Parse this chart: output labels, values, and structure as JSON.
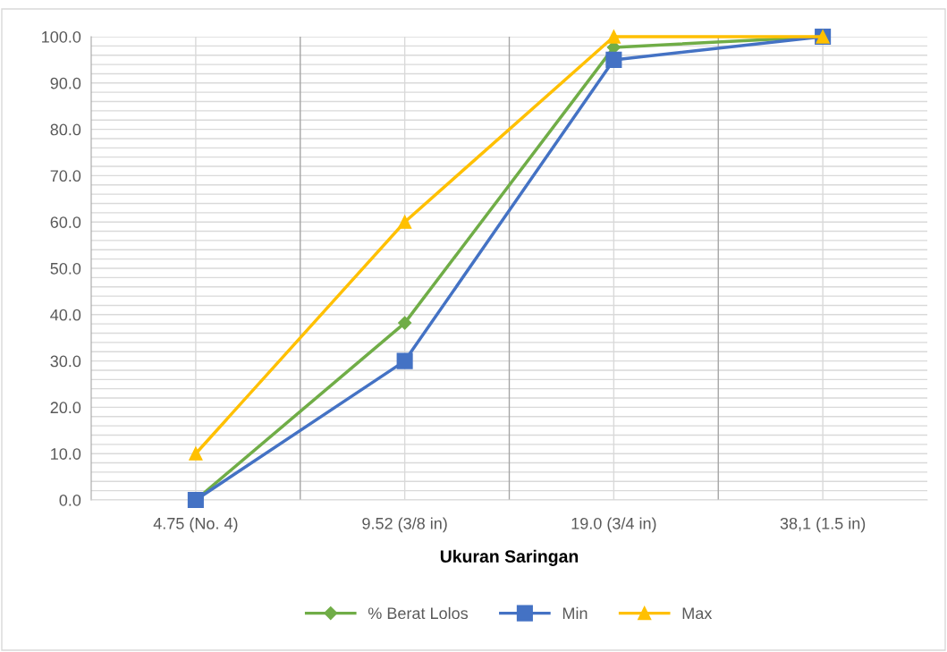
{
  "chart_data": {
    "type": "line",
    "xlabel": "Ukuran Saringan",
    "categories": [
      "4.75 (No. 4)",
      "9.52 (3/8 in)",
      "19.0 (3/4 in)",
      "38,1 (1.5 in)"
    ],
    "series": [
      {
        "name": "% Berat Lolos",
        "color": "#70ad47",
        "marker": "diamond",
        "values": [
          0.0,
          38.2,
          97.7,
          100.0
        ]
      },
      {
        "name": "Min",
        "color": "#4472c4",
        "marker": "square",
        "values": [
          0.0,
          30.0,
          95.0,
          100.0
        ]
      },
      {
        "name": "Max",
        "color": "#ffc000",
        "marker": "triangle",
        "values": [
          10.0,
          60.0,
          100.0,
          100.0
        ]
      }
    ],
    "ylim": [
      0,
      100
    ],
    "yticks": [
      {
        "value": 0,
        "label": "0.0"
      },
      {
        "value": 10,
        "label": "10.0"
      },
      {
        "value": 20,
        "label": "20.0"
      },
      {
        "value": 30,
        "label": "30.0"
      },
      {
        "value": 40,
        "label": "40.0"
      },
      {
        "value": 50,
        "label": "50.0"
      },
      {
        "value": 60,
        "label": "60.0"
      },
      {
        "value": 70,
        "label": "70.0"
      },
      {
        "value": 80,
        "label": "80.0"
      },
      {
        "value": 90,
        "label": "90.0"
      },
      {
        "value": 100,
        "label": "100.0"
      }
    ],
    "grid": true,
    "legend": "bottom",
    "line_style": "solid"
  }
}
